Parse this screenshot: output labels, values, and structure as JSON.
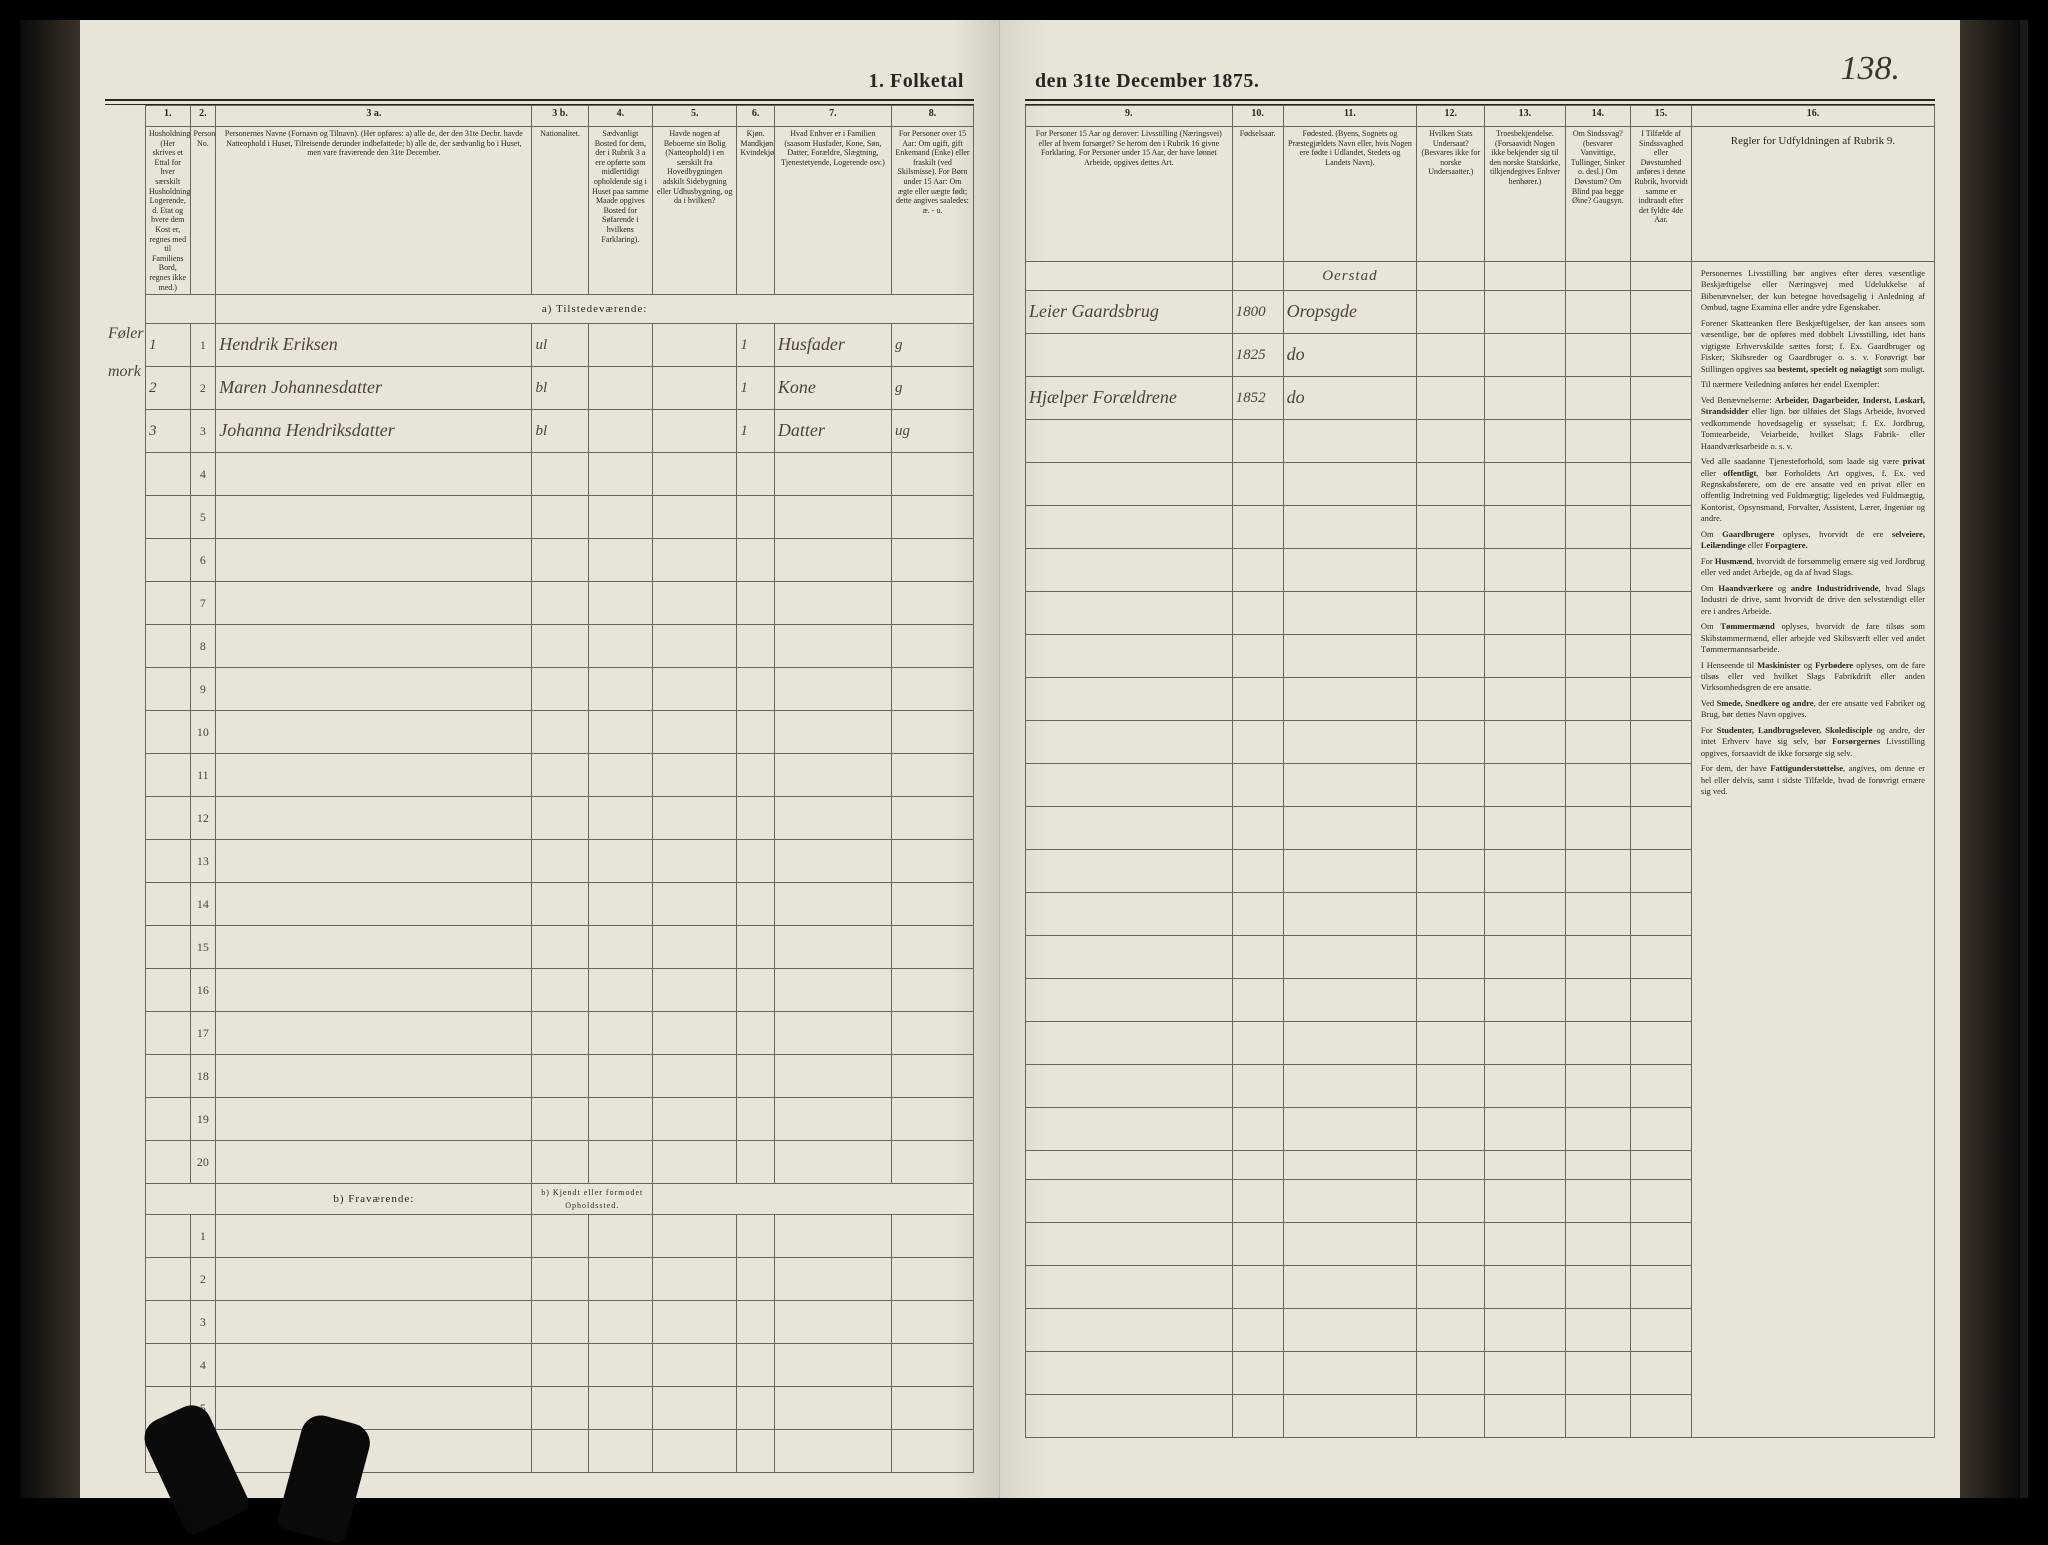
{
  "document": {
    "title_left": "1.  Folketal",
    "title_right": "den 31te December 1875.",
    "page_number": "138."
  },
  "columns_left": {
    "nums": [
      "1.",
      "2.",
      "3 a.",
      "3 b.",
      "4.",
      "5.",
      "6.",
      "7.",
      "8."
    ],
    "widths": [
      38,
      22,
      270,
      48,
      55,
      72,
      32,
      100,
      70
    ],
    "headers": [
      "Husholdninger. (Her skrives et Ettal for hver særskilt Husholdning; Logerende, d. Etat og hvere dem Kost er, regnes med til Familiens Bord, regnes ikke med.)",
      "Personernes No.",
      "Personernes Navne (Fornavn og Tilnavn).\n(Her opføres:\na) alle de, der den 31te Decbr. havde Natteophold i Huset, Tilreisende derunder indbefattede;\nb) alle de, der sædvanlig bo i Huset, men vare fraværende den 31te December.",
      "Nationalitet.",
      "Sædvanligt Bosted for dem, der i Rubrik 3 a ere opførte som midlertidigt opholdende sig i Huset paa samme Maade opgives Bosted for Søfarende i hvilkens Farklaring).",
      "Havde nogen af Beboerne sin Bolig (Natteophold) i en særskilt fra Hovedbygningen adskilt Sidebygning eller Udhusbygning, og da i hvilken?",
      "Kjøn. Mandkjøn. Kvindekjøn.",
      "Hvad Enhver er i Familien (saasom Husfader, Kone, Søn, Datter, Forældre, Slægtning, Tjenestetyende, Logerende osv.)",
      "For Personer over 15 Aar: Om ugift, gift Enkemand (Enke) eller fraskilt (ved Skilsmisse). For Børn under 15 Aar: Om ægte eller uægte født; dette angives saaledes: æ. - u."
    ]
  },
  "columns_right": {
    "nums": [
      "9.",
      "10.",
      "11.",
      "12.",
      "13.",
      "14.",
      "15.",
      "16."
    ],
    "widths": [
      170,
      42,
      110,
      56,
      66,
      54,
      50,
      200
    ],
    "headers": [
      "For Personer 15 Aar og derover: Livsstilling (Næringsvei) eller af hvem forsørget? Se herom den i Rubrik 16 givne Forklaring.\nFor Personer under 15 Aar, der have lønnet Arbeide, opgives dettes Art.",
      "Fødselsaar.",
      "Fødested. (Byens, Sognets og Præstegjældets Navn eller, hvis Nogen ere fødte i Udlandet, Stedets og Landets Navn).",
      "Hvilken Stats Undersaat? (Besvares ikke for norske Undersaatter.)",
      "Troesbekjendelse. (Forsaavidt Nogen ikke bekjender sig til den norske Statskirke, tilkjendegives Enhver henhører.)",
      "Om Sindssvag? (besvarer Vanvittige, Tullinger, Sinker o. desl.) Om Døvstum? Om Blind paa begge Øine? Gaugsyn.",
      "I Tilfælde af Sindssvaghed eller Døvstumhed anføres i denne Rubrik, hvorvidt samme er indtraadt efter det fyldte 4de Aar.",
      "Regler for Udfyldningen af Rubrik 9."
    ]
  },
  "sections": {
    "a_present": "a) Tilstedeværende:",
    "b_absent": "b) Fraværende:",
    "b_note": "b) Kjendt eller formodet Opholdssted."
  },
  "side_notes": [
    "Føler",
    "mork"
  ],
  "entries": [
    {
      "row": 1,
      "hh": "1",
      "name": "Hendrik Eriksen",
      "nat": "ul",
      "col6": "1",
      "family": "Husfader",
      "marital": "g",
      "occupation": "Leier Gaardsbrug",
      "birth_year": "1800",
      "birthplace_header": "Oerstad",
      "birthplace": "Oropsgde"
    },
    {
      "row": 2,
      "hh": "2",
      "name": "Maren Johannesdatter",
      "nat": "bl",
      "col6": "1",
      "family": "Kone",
      "marital": "g",
      "occupation": "",
      "birth_year": "1825",
      "birthplace": "do"
    },
    {
      "row": 3,
      "hh": "3",
      "name": "Johanna Hendriksdatter",
      "nat": "bl",
      "col6": "1",
      "family": "Datter",
      "marital": "ug",
      "occupation": "Hjælper Forældrene",
      "birth_year": "1852",
      "birthplace": "do"
    }
  ],
  "main_rows_a": 20,
  "main_rows_b": 6,
  "instructions": {
    "title": "Regler for Udfyldningen af Rubrik 9.",
    "paragraphs": [
      "Personernes Livsstilling bør angives efter deres væsentlige Beskjæftigelse eller Næringsvej med Udelukkelse af Bibenævnelser, der kun betegne hovedsagelig i Anledning af Ombud, tagne Examina eller andre ydre Egenskaber.",
      "Forener Skatteanken flere Beskjæftigelser, der kan ansees som væsentlige, bør de opføres med dobbelt Livsstilling, idet hans vigtigste Erhvervskilde sættes forst; f. Ex. Gaardbruger og Fisker; Skibsreder og Gaardbruger o. s. v. Forøvrigt bør Stillingen opgives saa <b>bestemt, specielt og nøiagtigt</b> som muligt.",
      "Til nærmere Veiledning anføres her endel Exempler:",
      "Ved Benævnelserne: <b>Arbeider, Dagarbeider, Inderst, Løskarl, Strandsidder</b> eller lign. bør tilføies det Slags Arbeide, hvorved vedkommende hovedsagelig er sysselsat; f. Ex. Jordbrug, Tomtearbeide, Veiarbeide, hvilket Slags Fabrik- eller Haandværksarbeide o. s. v.",
      "Ved alle saadanne Tjenesteforhold, som laade sig være <b>privat</b> eller <b>offentligt</b>, bør Forholdets Art opgives, f. Ex. ved Regnskabsførere, om de ere ansatte ved en privat eller en offentlig Indretning ved Fuldmægtig; ligeledes ved Fuldmægtig, Kontorist, Opsynsmand, Forvalter, Assistent, Lærer, Ingeniør og andre.",
      "Om <b>Gaardbrugere</b> oplyses, hvorvidt de ere <b>selveiere, Leilændinge</b> eller <b>Forpagtere.</b>",
      "For <b>Husmænd</b>, hvorvidt de forsømmelig ernære sig ved Jordbrug eller ved andet Arbejde, og da af hvad Slags.",
      "Om <b>Haandværkere</b> og <b>andre Industridrivende</b>, hvad Slags Industri de drive, samt hvorvidt de drive den selvstændigt eller ere i andres Arbeide.",
      "Om <b>Tømmermænd</b> oplyses, hvorvidt de fare tilsøs som Skibstømmermænd, eller arbejde ved Skibsværft eller ved andet Tømmermannsarbeide.",
      "I Henseende til <b>Maskinister</b> og <b>Fyrbødere</b> oplyses, om de fare tilsøs eller ved hvilket Slags Fabrikdrift eller anden Virksomhedsgren de ere ansatte.",
      "Ved <b>Smede, Snedkere og andre</b>, der ere ansatte ved Fabriker og Brug, bør dettes Navn opgives.",
      "For <b>Studenter, Landbrugselever, Skoledisciple</b> og andre, der intet Erhverv have sig selv, bør <b>Forsørgernes</b> Livsstilling opgives, forsaavidt de ikke forsørge sig selv.",
      "For dem, der have <b>Fattigunderstøttelse</b>, angives, om denne er hel eller delvis, samt i sidste Tilfælde, hvad de forøvrigt ernære sig ved."
    ]
  },
  "style": {
    "paper": "#e8e4d8",
    "ink": "#2a2520",
    "hand_ink": "#4a443a",
    "rule": "#6a655c"
  }
}
